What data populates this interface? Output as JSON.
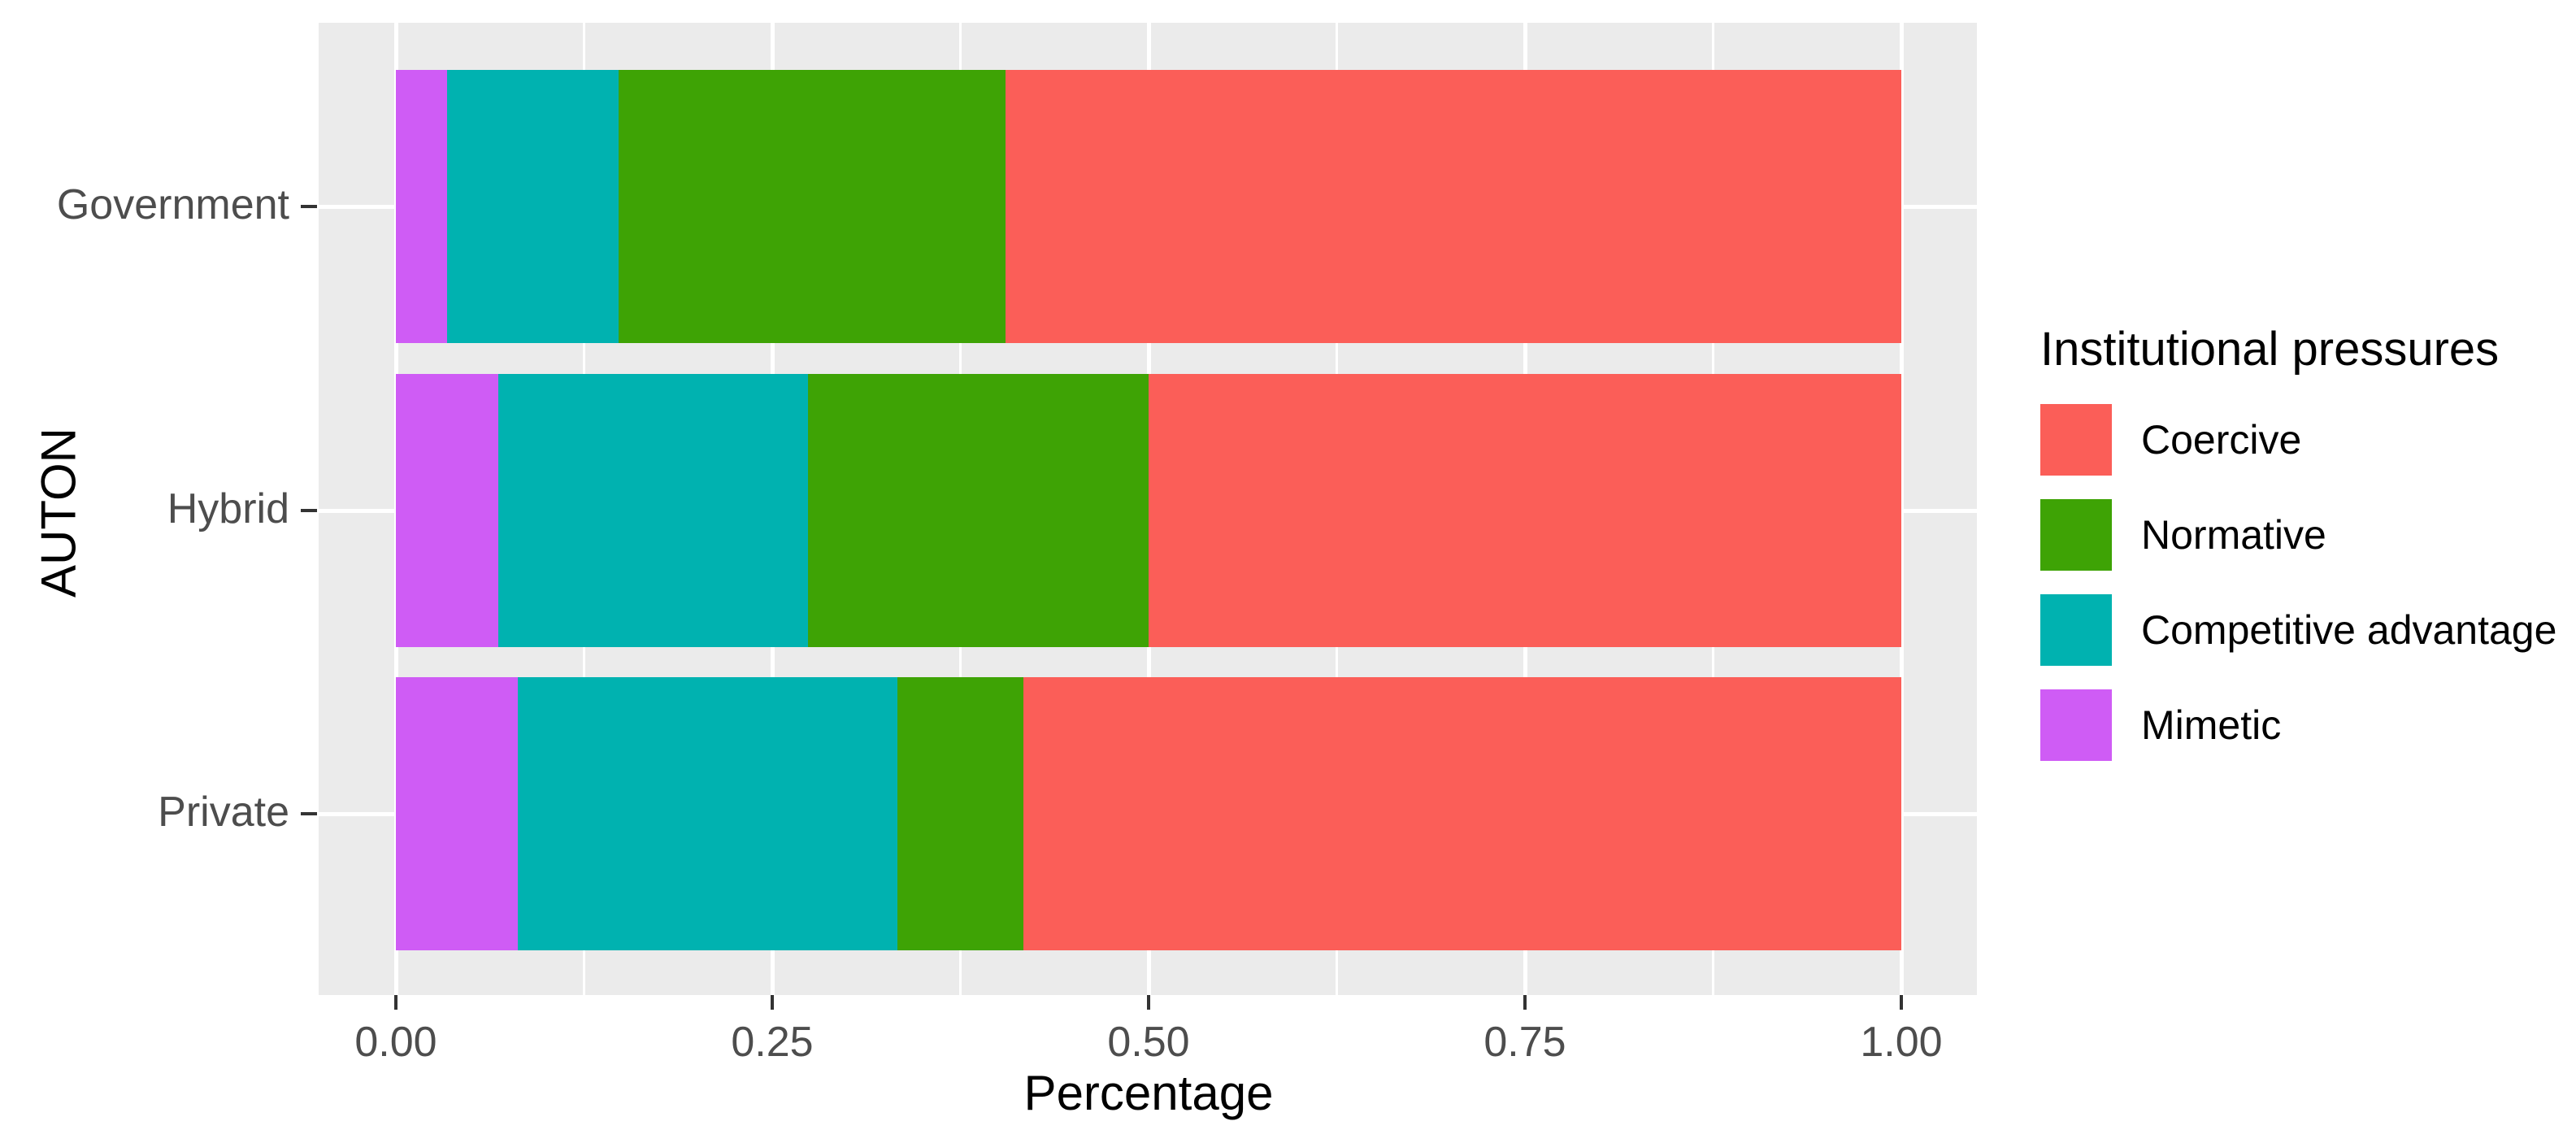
{
  "figure_style": {
    "background": "#FFFFFF",
    "panel_background": "#EBEBEB",
    "gridline_color": "#FFFFFF",
    "tick_mark_color": "#333333",
    "tick_label_color": "#4D4D4D",
    "title_color": "#000000"
  },
  "chart_data": {
    "type": "bar",
    "orientation": "horizontal",
    "stacked": true,
    "normalized": true,
    "title": "",
    "xlabel": "Percentage",
    "ylabel": "AUTON",
    "xlim": [
      0,
      1
    ],
    "x_ticks": [
      {
        "value": 0.0,
        "label": "0.00"
      },
      {
        "value": 0.25,
        "label": "0.25"
      },
      {
        "value": 0.5,
        "label": "0.50"
      },
      {
        "value": 0.75,
        "label": "0.75"
      },
      {
        "value": 1.0,
        "label": "1.00"
      }
    ],
    "grid": {
      "vertical_major": true,
      "vertical_minor": true,
      "horizontal_major": true
    },
    "categories": [
      "Government",
      "Hybrid",
      "Private"
    ],
    "stack_order_left_to_right": [
      "Mimetic",
      "Competitive advantage",
      "Normative",
      "Coercive"
    ],
    "series": [
      {
        "name": "Mimetic",
        "values": [
          0.034,
          0.068,
          0.081
        ]
      },
      {
        "name": "Competitive advantage",
        "values": [
          0.114,
          0.206,
          0.252
        ]
      },
      {
        "name": "Normative",
        "values": [
          0.257,
          0.226,
          0.084
        ]
      },
      {
        "name": "Coercive",
        "values": [
          0.595,
          0.5,
          0.583
        ]
      }
    ],
    "colors": {
      "Coercive": "#FB5E58",
      "Normative": "#3EA305",
      "Competitive advantage": "#00B2B0",
      "Mimetic": "#CF5CF5"
    },
    "legend": {
      "title": "Institutional pressures",
      "position": "right",
      "entries": [
        "Coercive",
        "Normative",
        "Competitive advantage",
        "Mimetic"
      ]
    }
  }
}
